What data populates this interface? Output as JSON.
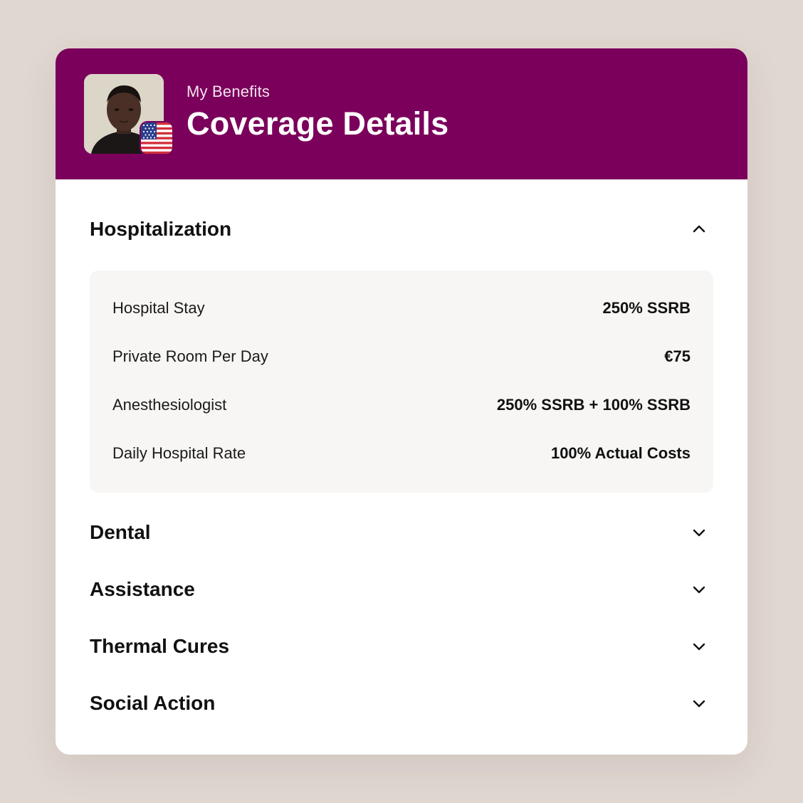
{
  "header": {
    "subtitle": "My Benefits",
    "title": "Coverage Details",
    "avatar_icon": "user-portrait",
    "flag_icon": "us-flag-icon"
  },
  "colors": {
    "header_bg": "#7b005b",
    "page_bg": "#e0d7d1",
    "panel_bg": "#f7f6f4"
  },
  "sections": [
    {
      "title": "Hospitalization",
      "expanded": true,
      "icon": "chevron-up-icon",
      "items": [
        {
          "label": "Hospital Stay",
          "value": "250% SSRB"
        },
        {
          "label": "Private Room Per Day",
          "value": "€75"
        },
        {
          "label": "Anesthesiologist",
          "value": "250% SSRB + 100% SSRB"
        },
        {
          "label": "Daily Hospital Rate",
          "value": "100% Actual Costs"
        }
      ]
    },
    {
      "title": "Dental",
      "expanded": false,
      "icon": "chevron-down-icon"
    },
    {
      "title": "Assistance",
      "expanded": false,
      "icon": "chevron-down-icon"
    },
    {
      "title": "Thermal Cures",
      "expanded": false,
      "icon": "chevron-down-icon"
    },
    {
      "title": "Social Action",
      "expanded": false,
      "icon": "chevron-down-icon"
    }
  ]
}
